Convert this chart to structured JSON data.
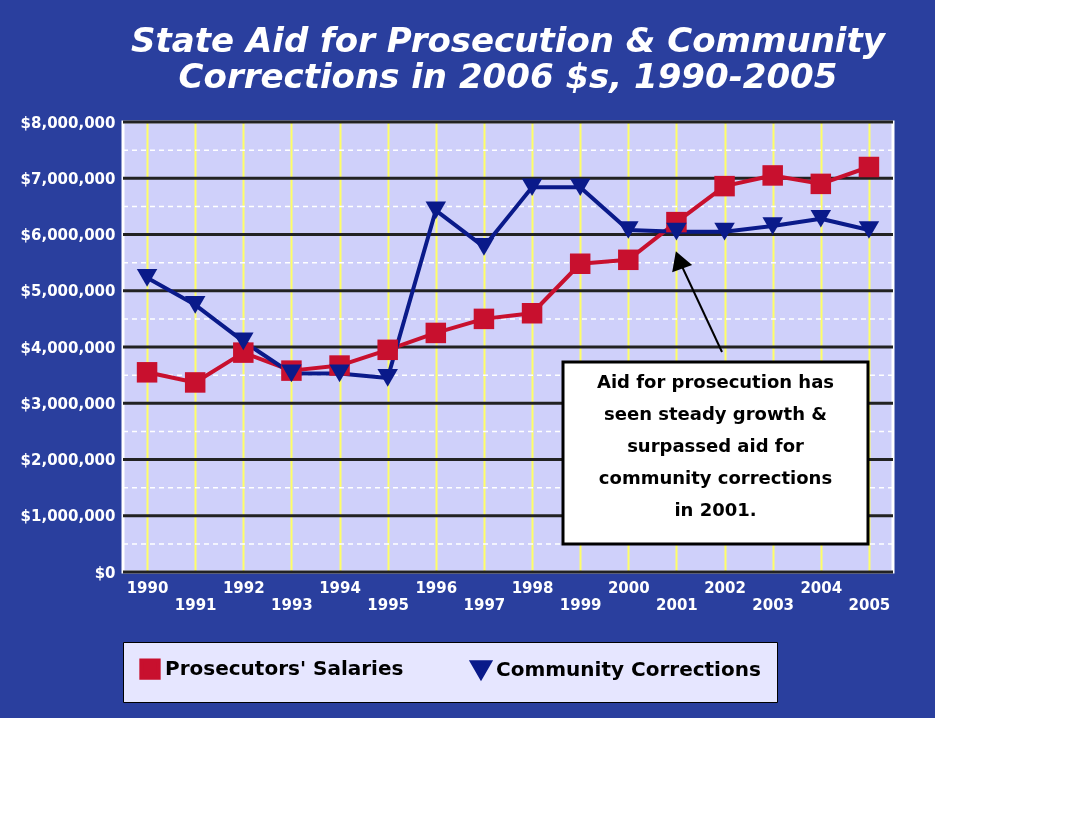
{
  "chart_data": {
    "type": "line",
    "title": [
      "State Aid for Prosecution & Community",
      "Corrections in 2006 $s, 1990-2005"
    ],
    "categories": [
      "1990",
      "1991",
      "1992",
      "1993",
      "1994",
      "1995",
      "1996",
      "1997",
      "1998",
      "1999",
      "2000",
      "2001",
      "2002",
      "2003",
      "2004",
      "2005"
    ],
    "series": [
      {
        "name": "Prosecutors' Salaries",
        "color": "#c8102e",
        "marker": "square",
        "values": [
          3550000,
          3370000,
          3900000,
          3580000,
          3670000,
          3950000,
          4250000,
          4500000,
          4600000,
          5480000,
          5550000,
          6220000,
          6860000,
          7050000,
          6900000,
          7200000
        ]
      },
      {
        "name": "Community Corrections",
        "color": "#0a1a8a",
        "marker": "triangle",
        "values": [
          5230000,
          4750000,
          4100000,
          3530000,
          3530000,
          3450000,
          6430000,
          5780000,
          6840000,
          6840000,
          6080000,
          6050000,
          6050000,
          6150000,
          6280000,
          6080000
        ]
      }
    ],
    "ylim": [
      0,
      8000000
    ],
    "yticks": [
      {
        "value": 0,
        "label": "$0"
      },
      {
        "value": 500000,
        "label": null
      },
      {
        "value": 1000000,
        "label": "$1,000,000"
      },
      {
        "value": 1500000,
        "label": null
      },
      {
        "value": 2000000,
        "label": "$2,000,000"
      },
      {
        "value": 2500000,
        "label": null
      },
      {
        "value": 3000000,
        "label": "$3,000,000"
      },
      {
        "value": 3500000,
        "label": null
      },
      {
        "value": 4000000,
        "label": "$4,000,000"
      },
      {
        "value": 4500000,
        "label": null
      },
      {
        "value": 5000000,
        "label": "$5,000,000"
      },
      {
        "value": 5500000,
        "label": null
      },
      {
        "value": 6000000,
        "label": "$6,000,000"
      },
      {
        "value": 6500000,
        "label": null
      },
      {
        "value": 7000000,
        "label": "$7,000,000"
      },
      {
        "value": 7500000,
        "label": null
      },
      {
        "value": 8000000,
        "label": "$8,000,000"
      }
    ],
    "grid": true,
    "legend": "bottom",
    "line_style": "solid",
    "annotations": [
      "Aid for prosecution has seen steady growth & surpassed aid for community corrections in 2001."
    ]
  }
}
